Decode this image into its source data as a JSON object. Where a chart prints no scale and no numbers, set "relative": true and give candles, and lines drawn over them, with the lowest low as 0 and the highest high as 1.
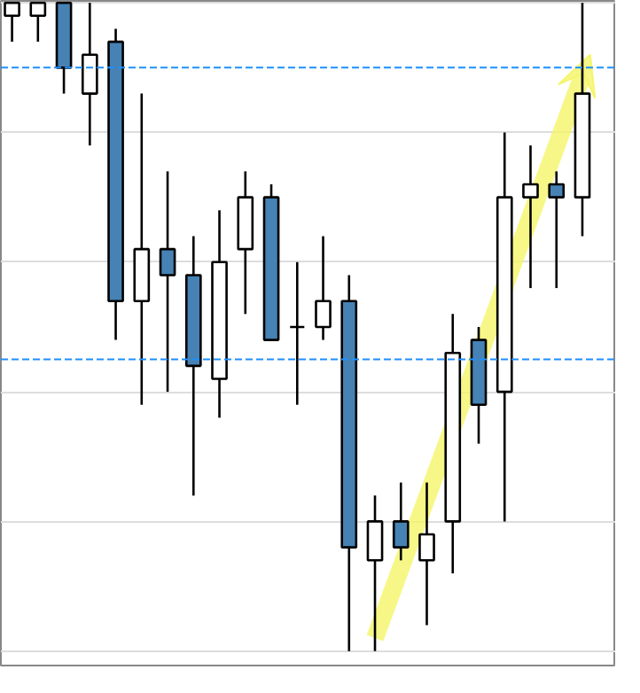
{
  "chart_data": {
    "type": "candlestick",
    "relative": true,
    "categories": [
      null,
      null,
      null,
      null,
      null,
      null,
      null,
      null,
      null,
      null,
      null,
      null,
      null,
      null,
      null,
      null,
      null,
      null,
      null,
      null,
      null,
      null,
      null
    ],
    "ohlc": [
      [
        0.98,
        1,
        0.94,
        1
      ],
      [
        0.98,
        1,
        0.94,
        1
      ],
      [
        1,
        1,
        0.86,
        0.9
      ],
      [
        0.86,
        1,
        0.78,
        0.92
      ],
      [
        0.94,
        0.96,
        0.48,
        0.54
      ],
      [
        0.54,
        0.86,
        0.38,
        0.62
      ],
      [
        0.62,
        0.74,
        0.4,
        0.58
      ],
      [
        0.58,
        0.64,
        0.24,
        0.44
      ],
      [
        0.42,
        0.68,
        0.36,
        0.6
      ],
      [
        0.62,
        0.74,
        0.52,
        0.7
      ],
      [
        0.7,
        0.72,
        0.48,
        0.48
      ],
      [
        0.5,
        0.6,
        0.38,
        0.5
      ],
      [
        0.5,
        0.64,
        0.48,
        0.54
      ],
      [
        0.54,
        0.58,
        0,
        0.16
      ],
      [
        0.14,
        0.24,
        0,
        0.2
      ],
      [
        0.2,
        0.26,
        0.14,
        0.16
      ],
      [
        0.14,
        0.26,
        0.04,
        0.18
      ],
      [
        0.2,
        0.52,
        0.12,
        0.46
      ],
      [
        0.48,
        0.5,
        0.32,
        0.38
      ],
      [
        0.4,
        0.8,
        0.2,
        0.7
      ],
      [
        0.7,
        0.78,
        0.56,
        0.72
      ],
      [
        0.72,
        0.74,
        0.56,
        0.7
      ],
      [
        0.7,
        1,
        0.64,
        0.86
      ]
    ],
    "colors": [
      "#ffffff",
      "#ffffff",
      "#4682b4",
      "#ffffff",
      "#4682b4",
      "#ffffff",
      "#4682b4",
      "#4682b4",
      "#ffffff",
      "#ffffff",
      "#4682b4",
      "#000000",
      "#ffffff",
      "#4682b4",
      "#ffffff",
      "#4682b4",
      "#ffffff",
      "#ffffff",
      "#4682b4",
      "#ffffff",
      "#ffffff",
      "#4682b4",
      "#ffffff"
    ],
    "ref_lines": [
      {
        "axis": "y",
        "value": 0.9,
        "color": "#1e90ff",
        "line_style": "dashed"
      },
      {
        "axis": "y",
        "value": 0.45,
        "color": "#1e90ff",
        "line_style": "dashed"
      }
    ],
    "grid": "y"
  }
}
